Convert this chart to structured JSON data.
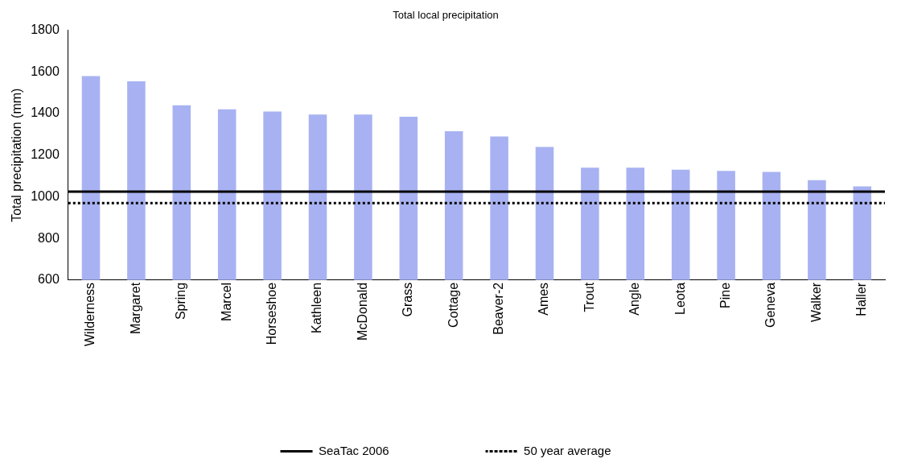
{
  "chart_data": {
    "type": "bar",
    "title": "Total local precipitation",
    "ylabel": "Total precipitation (mm)",
    "categories": [
      "Wilderness",
      "Margaret",
      "Spring",
      "Marcel",
      "Horseshoe",
      "Kathleen",
      "McDonald",
      "Grass",
      "Cottage",
      "Beaver-2",
      "Ames",
      "Trout",
      "Angle",
      "Leota",
      "Pine",
      "Geneva",
      "Walker",
      "Haller"
    ],
    "values": [
      1580,
      1555,
      1440,
      1420,
      1410,
      1395,
      1395,
      1385,
      1315,
      1290,
      1240,
      1140,
      1140,
      1130,
      1125,
      1120,
      1080,
      1050
    ],
    "color": "#a8b2f2",
    "ylim": [
      600,
      1800
    ],
    "yticks": [
      600,
      800,
      1000,
      1200,
      1400,
      1600,
      1800
    ],
    "grid": false,
    "legend": "bottom",
    "ref_lines": [
      {
        "axis": "y",
        "value": 1025,
        "label": "SeaTac 2006",
        "color": "#000000",
        "line_style": "solid"
      },
      {
        "axis": "y",
        "value": 970,
        "label": "50 year average",
        "color": "#000000",
        "line_style": "dotted"
      }
    ]
  }
}
